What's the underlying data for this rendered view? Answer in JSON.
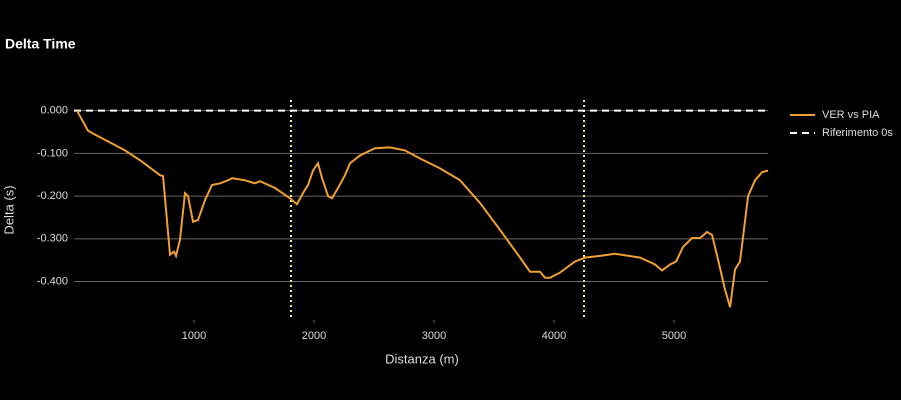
{
  "chart_data": {
    "type": "line",
    "title": "Delta Time",
    "xlabel": "Distanza (m)",
    "ylabel": "Delta (s)",
    "x": [
      25,
      117,
      175,
      425,
      550,
      717,
      742,
      800,
      833,
      850,
      883,
      925,
      950,
      992,
      1033,
      1092,
      1150,
      1217,
      1283,
      1317,
      1425,
      1508,
      1550,
      1675,
      1800,
      1858,
      1908,
      1950,
      1992,
      2033,
      2067,
      2117,
      2150,
      2200,
      2258,
      2300,
      2383,
      2508,
      2633,
      2758,
      2883,
      3050,
      3217,
      3383,
      3550,
      3717,
      3800,
      3883,
      3925,
      3967,
      4050,
      4175,
      4258,
      4383,
      4508,
      4717,
      4842,
      4900,
      4967,
      5017,
      5075,
      5150,
      5217,
      5275,
      5317,
      5367,
      5425,
      5467,
      5508,
      5550,
      5617,
      5675,
      5733,
      5783
    ],
    "series": [
      {
        "name": "VER vs PIA",
        "color": "#f0a030",
        "values": [
          0,
          -0.047,
          -0.056,
          -0.093,
          -0.116,
          -0.151,
          -0.153,
          -0.337,
          -0.33,
          -0.34,
          -0.302,
          -0.193,
          -0.2,
          -0.26,
          -0.256,
          -0.209,
          -0.174,
          -0.17,
          -0.163,
          -0.158,
          -0.163,
          -0.17,
          -0.165,
          -0.181,
          -0.205,
          -0.219,
          -0.193,
          -0.174,
          -0.14,
          -0.123,
          -0.158,
          -0.2,
          -0.205,
          -0.181,
          -0.151,
          -0.123,
          -0.105,
          -0.088,
          -0.086,
          -0.093,
          -0.112,
          -0.135,
          -0.163,
          -0.216,
          -0.279,
          -0.344,
          -0.377,
          -0.377,
          -0.391,
          -0.391,
          -0.379,
          -0.353,
          -0.344,
          -0.34,
          -0.335,
          -0.344,
          -0.36,
          -0.374,
          -0.36,
          -0.353,
          -0.319,
          -0.298,
          -0.298,
          -0.284,
          -0.291,
          -0.349,
          -0.419,
          -0.46,
          -0.372,
          -0.353,
          -0.2,
          -0.163,
          -0.144,
          -0.14
        ]
      }
    ],
    "hlines": [
      {
        "name": "Riferimento 0s",
        "y": 0,
        "color": "#ffffff"
      }
    ],
    "vlines": [
      {
        "x": 1808,
        "color": "#e8f5a0"
      },
      {
        "x": 4250,
        "color": "#e8f5a0"
      }
    ],
    "xlim": [
      0,
      5783
    ],
    "ylim": [
      -0.49,
      0.025
    ],
    "xticks": [
      1000,
      2000,
      3000,
      4000,
      5000
    ],
    "yticks": [
      {
        "value": 0,
        "label": "0.000"
      },
      {
        "value": -0.1,
        "label": "-0.100"
      },
      {
        "value": -0.2,
        "label": "-0.200"
      },
      {
        "value": -0.3,
        "label": "-0.300"
      },
      {
        "value": -0.4,
        "label": "-0.400"
      }
    ],
    "grid": true
  }
}
